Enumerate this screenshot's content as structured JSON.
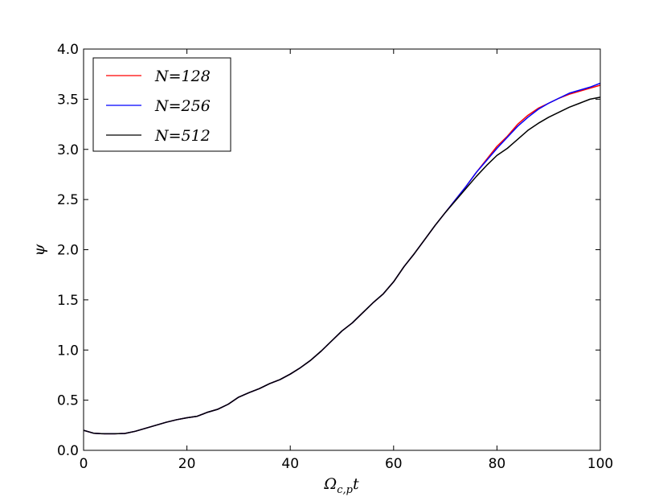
{
  "chart_data": {
    "type": "line",
    "xlabel": "Ωc,pt",
    "ylabel": "ψ",
    "xlim": [
      0,
      100
    ],
    "ylim": [
      0.0,
      4.0
    ],
    "xticks": [
      0,
      20,
      40,
      60,
      80,
      100
    ],
    "yticks": [
      0.0,
      0.5,
      1.0,
      1.5,
      2.0,
      2.5,
      3.0,
      3.5,
      4.0
    ],
    "xtick_labels": [
      "0",
      "20",
      "40",
      "60",
      "80",
      "100"
    ],
    "ytick_labels": [
      "0.0",
      "0.5",
      "1.0",
      "1.5",
      "2.0",
      "2.5",
      "3.0",
      "3.5",
      "4.0"
    ],
    "grid": false,
    "legend_position": "top-left",
    "x": [
      0,
      2,
      4,
      6,
      8,
      10,
      12,
      14,
      16,
      18,
      20,
      22,
      24,
      26,
      28,
      30,
      32,
      34,
      36,
      38,
      40,
      42,
      44,
      46,
      48,
      50,
      52,
      54,
      56,
      58,
      60,
      62,
      64,
      66,
      68,
      70,
      72,
      74,
      76,
      78,
      80,
      82,
      84,
      86,
      88,
      90,
      92,
      94,
      96,
      98,
      100
    ],
    "series": [
      {
        "name": "N=128",
        "color": "#ff0000",
        "values": [
          0.2,
          0.17,
          0.165,
          0.165,
          0.168,
          0.19,
          0.22,
          0.25,
          0.28,
          0.305,
          0.325,
          0.34,
          0.38,
          0.41,
          0.46,
          0.53,
          0.575,
          0.615,
          0.665,
          0.705,
          0.76,
          0.825,
          0.9,
          0.99,
          1.09,
          1.19,
          1.27,
          1.37,
          1.47,
          1.56,
          1.68,
          1.83,
          1.96,
          2.1,
          2.24,
          2.37,
          2.5,
          2.63,
          2.77,
          2.9,
          3.03,
          3.13,
          3.25,
          3.34,
          3.41,
          3.46,
          3.51,
          3.55,
          3.58,
          3.61,
          3.64
        ]
      },
      {
        "name": "N=256",
        "color": "#0000ff",
        "values": [
          0.2,
          0.17,
          0.165,
          0.165,
          0.168,
          0.19,
          0.22,
          0.25,
          0.28,
          0.305,
          0.325,
          0.34,
          0.38,
          0.41,
          0.46,
          0.53,
          0.575,
          0.615,
          0.665,
          0.705,
          0.76,
          0.825,
          0.9,
          0.99,
          1.09,
          1.19,
          1.27,
          1.37,
          1.47,
          1.56,
          1.68,
          1.83,
          1.96,
          2.1,
          2.24,
          2.37,
          2.5,
          2.63,
          2.77,
          2.89,
          3.01,
          3.12,
          3.23,
          3.32,
          3.4,
          3.46,
          3.51,
          3.56,
          3.59,
          3.62,
          3.66
        ]
      },
      {
        "name": "N=512",
        "color": "#000000",
        "values": [
          0.2,
          0.17,
          0.165,
          0.165,
          0.168,
          0.19,
          0.22,
          0.25,
          0.28,
          0.305,
          0.325,
          0.34,
          0.38,
          0.41,
          0.46,
          0.53,
          0.575,
          0.615,
          0.665,
          0.705,
          0.76,
          0.825,
          0.9,
          0.99,
          1.09,
          1.19,
          1.27,
          1.37,
          1.47,
          1.56,
          1.68,
          1.83,
          1.96,
          2.1,
          2.24,
          2.37,
          2.49,
          2.61,
          2.73,
          2.84,
          2.94,
          3.01,
          3.1,
          3.19,
          3.26,
          3.32,
          3.37,
          3.42,
          3.46,
          3.5,
          3.52
        ]
      }
    ]
  }
}
